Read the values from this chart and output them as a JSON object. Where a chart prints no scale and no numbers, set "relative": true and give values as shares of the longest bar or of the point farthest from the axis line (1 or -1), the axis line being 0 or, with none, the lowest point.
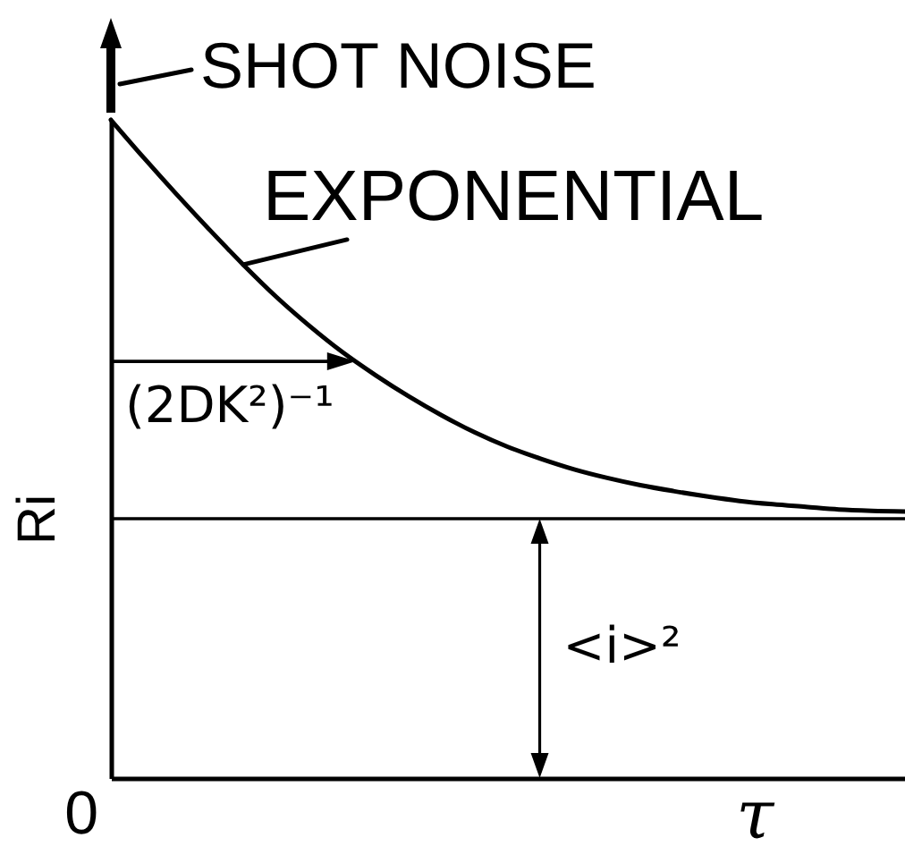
{
  "chart_data": {
    "type": "line",
    "relative": true,
    "xlabel": "τ",
    "ylabel": "Ri",
    "categories": [
      null,
      null,
      null,
      null,
      null,
      null,
      null,
      null,
      null,
      null,
      null,
      null,
      null,
      null,
      null,
      null,
      null,
      null,
      null,
      null,
      null,
      null,
      null,
      null,
      null
    ],
    "series": [
      {
        "name": "EXPONENTIAL",
        "color": "#000000",
        "values": [
          1.0,
          0.942,
          0.886,
          0.832,
          0.78,
          0.731,
          0.687,
          0.647,
          0.612,
          0.58,
          0.551,
          0.525,
          0.503,
          0.485,
          0.469,
          0.456,
          0.445,
          0.436,
          0.428,
          0.421,
          0.416,
          0.412,
          0.408,
          0.406,
          0.405
        ]
      }
    ],
    "ref_lines": [
      {
        "axis": "y",
        "value": 0.394,
        "label": "<i>²",
        "color": "#000000"
      }
    ],
    "annotations": [
      "SHOT NOISE",
      "0",
      "(2DK²)⁻¹"
    ]
  }
}
